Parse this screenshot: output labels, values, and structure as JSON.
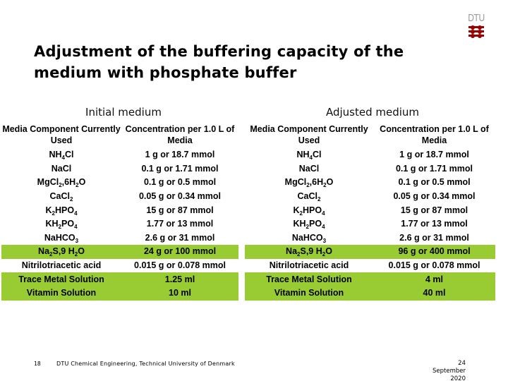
{
  "slide": {
    "title": "Adjustment of the buffering capacity of the medium with phosphate buffer",
    "logo_text": "DTU",
    "highlight_color": "#99cc33",
    "logo_color": "#990000"
  },
  "initial": {
    "section_title": "Initial medium",
    "headers": [
      "Media Component Currently Used",
      "Concentration per 1.0 L of Media"
    ],
    "rows": [
      {
        "component": "NH4Cl",
        "concentration": "1 g or 18.7 mmol",
        "highlight": false
      },
      {
        "component": "NaCl",
        "concentration": "0.1 g or 1.71 mmol",
        "highlight": false
      },
      {
        "component": "MgCl2,6H2O",
        "concentration": "0.1 g or 0.5 mmol",
        "highlight": false
      },
      {
        "component": "CaCl2",
        "concentration": "0.05 g or 0.34 mmol",
        "highlight": false
      },
      {
        "component": "K2HPO4",
        "concentration": "15 g or 87 mmol",
        "highlight": false
      },
      {
        "component": "KH2PO4",
        "concentration": "1.77 or 13 mmol",
        "highlight": false
      },
      {
        "component": "NaHCO3",
        "concentration": "2.6 g or 31 mmol",
        "highlight": false
      },
      {
        "component": "Na2S,9 H2O",
        "concentration": "24 g or 100 mmol",
        "highlight": true
      },
      {
        "component": "Nitrilotriacetic acid",
        "concentration": "0.015 g or 0.078 mmol",
        "highlight": false
      },
      {
        "component": "Trace Metal Solution",
        "concentration": "1.25 ml",
        "highlight": true
      },
      {
        "component": "Vitamin Solution",
        "concentration": "10 ml",
        "highlight": true
      }
    ]
  },
  "adjusted": {
    "section_title": "Adjusted medium",
    "headers": [
      "Media Component Currently Used",
      "Concentration per 1.0 L of Media"
    ],
    "rows": [
      {
        "component": "NH4Cl",
        "concentration": "1 g or 18.7 mmol",
        "highlight": false
      },
      {
        "component": "NaCl",
        "concentration": "0.1 g or 1.71 mmol",
        "highlight": false
      },
      {
        "component": "MgCl2,6H2O",
        "concentration": "0.1 g or 0.5 mmol",
        "highlight": false
      },
      {
        "component": "CaCl2",
        "concentration": "0.05 g or 0.34 mmol",
        "highlight": false
      },
      {
        "component": "K2HPO4",
        "concentration": "15 g or 87 mmol",
        "highlight": false
      },
      {
        "component": "KH2PO4",
        "concentration": "1.77 or 13 mmol",
        "highlight": false
      },
      {
        "component": "NaHCO3",
        "concentration": "2.6 g or 31 mmol",
        "highlight": false
      },
      {
        "component": "Na2S,9 H2O",
        "concentration": "96 g or 400 mmol",
        "highlight": true
      },
      {
        "component": "Nitrilotriacetic acid",
        "concentration": "0.015 g or 0.078 mmol",
        "highlight": false
      },
      {
        "component": "Trace Metal Solution",
        "concentration": "4 ml",
        "highlight": true
      },
      {
        "component": "Vitamin Solution",
        "concentration": "40 ml",
        "highlight": true
      }
    ]
  },
  "footer": {
    "page_number": "18",
    "organization": "DTU Chemical Engineering, Technical University of Denmark",
    "date_line1": "24",
    "date_line2": "September",
    "date_line3": "2020"
  }
}
